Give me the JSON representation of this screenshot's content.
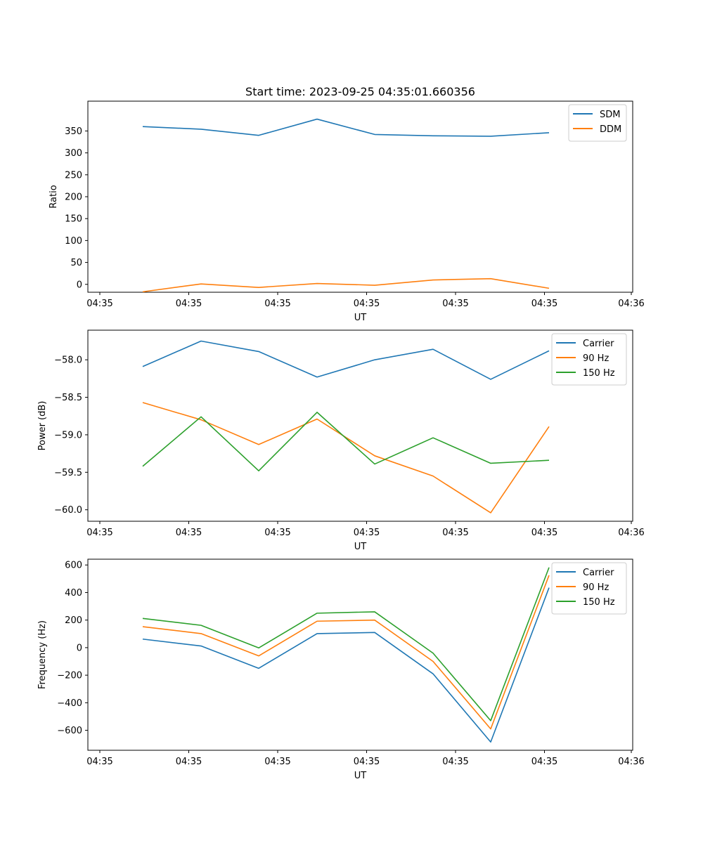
{
  "title": "Start time: 2023-09-25 04:35:01.660356",
  "chart_data": [
    {
      "type": "line",
      "title": "Start time: 2023-09-25 04:35:01.660356",
      "xlabel": "UT",
      "ylabel": "Ratio",
      "x_tick_labels": [
        "04:35",
        "04:35",
        "04:35",
        "04:35",
        "04:35",
        "04:35",
        "04:35",
        "04:36"
      ],
      "y_ticks": [
        0,
        50,
        100,
        150,
        200,
        250,
        300,
        350
      ],
      "ylim": [
        -18,
        418
      ],
      "legend_location": "top-right",
      "series": [
        {
          "name": "SDM",
          "color": "#1f77b4",
          "values": [
            360,
            354,
            340,
            377,
            342,
            339,
            338,
            346
          ]
        },
        {
          "name": "DDM",
          "color": "#ff7f0e",
          "values": [
            -17,
            1,
            -7,
            2,
            -2,
            10,
            13,
            -9
          ]
        }
      ]
    },
    {
      "type": "line",
      "title": "",
      "xlabel": "UT",
      "ylabel": "Power (dB)",
      "x_tick_labels": [
        "04:35",
        "04:35",
        "04:35",
        "04:35",
        "04:35",
        "04:35",
        "04:35",
        "04:36"
      ],
      "y_ticks": [
        -60.0,
        -59.5,
        -59.0,
        -58.5,
        -58.0
      ],
      "y_tick_labels": [
        "−60.0",
        "−59.5",
        "−59.0",
        "−58.5",
        "−58.0"
      ],
      "ylim": [
        -60.153,
        -57.605
      ],
      "legend_location": "top-right",
      "series": [
        {
          "name": "Carrier",
          "color": "#1f77b4",
          "values": [
            -58.09,
            -57.75,
            -57.89,
            -58.23,
            -58.0,
            -57.86,
            -58.26,
            -57.88
          ]
        },
        {
          "name": "90 Hz",
          "color": "#ff7f0e",
          "values": [
            -58.57,
            -58.8,
            -59.13,
            -58.79,
            -59.28,
            -59.55,
            -60.04,
            -58.89
          ]
        },
        {
          "name": "150 Hz",
          "color": "#2ca02c",
          "values": [
            -59.42,
            -58.76,
            -59.48,
            -58.7,
            -59.39,
            -59.04,
            -59.38,
            -59.34
          ]
        }
      ]
    },
    {
      "type": "line",
      "title": "",
      "xlabel": "UT",
      "ylabel": "Frequency (Hz)",
      "x_tick_labels": [
        "04:35",
        "04:35",
        "04:35",
        "04:35",
        "04:35",
        "04:35",
        "04:35",
        "04:36"
      ],
      "y_ticks": [
        -600,
        -400,
        -200,
        0,
        200,
        400,
        600
      ],
      "y_tick_labels": [
        "−600",
        "−400",
        "−200",
        "0",
        "200",
        "400",
        "600"
      ],
      "ylim": [
        -745,
        642
      ],
      "legend_location": "top-right",
      "series": [
        {
          "name": "Carrier",
          "color": "#1f77b4",
          "values": [
            62,
            12,
            -150,
            102,
            110,
            -190,
            -685,
            435
          ]
        },
        {
          "name": "90 Hz",
          "color": "#ff7f0e",
          "values": [
            152,
            102,
            -60,
            192,
            200,
            -100,
            -590,
            525
          ]
        },
        {
          "name": "150 Hz",
          "color": "#2ca02c",
          "values": [
            212,
            162,
            -2,
            250,
            260,
            -40,
            -530,
            582
          ]
        }
      ]
    }
  ]
}
